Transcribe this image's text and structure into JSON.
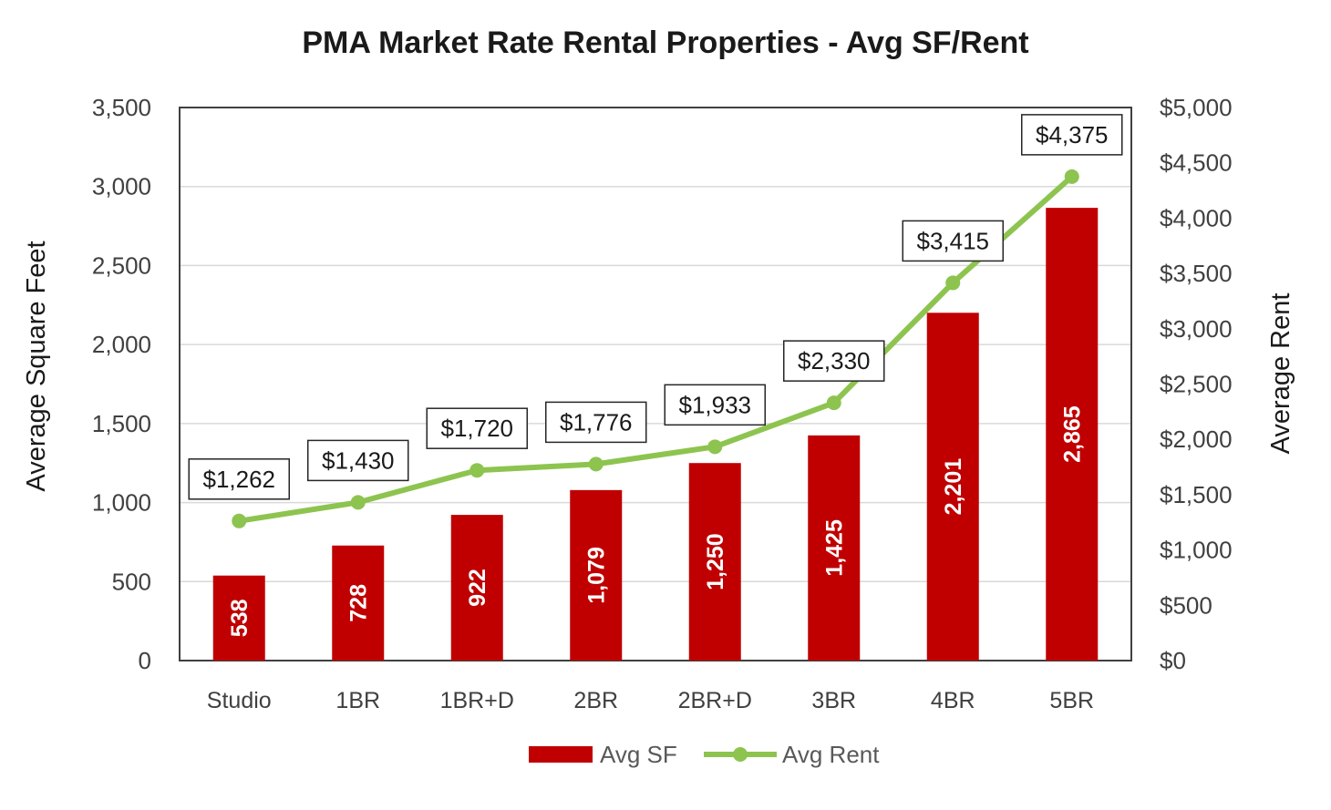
{
  "chart_data": {
    "type": "bar",
    "title": "PMA Market Rate Rental Properties - Avg SF/Rent",
    "categories": [
      "Studio",
      "1BR",
      "1BR+D",
      "2BR",
      "2BR+D",
      "3BR",
      "4BR",
      "5BR"
    ],
    "series": [
      {
        "name": "Avg SF",
        "type": "bar",
        "axis": "left",
        "color": "#c00000",
        "values": [
          538,
          728,
          922,
          1079,
          1250,
          1425,
          2201,
          2865
        ],
        "labels": [
          "538",
          "728",
          "922",
          "1,079",
          "1,250",
          "1,425",
          "2,201",
          "2,865"
        ]
      },
      {
        "name": "Avg Rent",
        "type": "line",
        "axis": "right",
        "color": "#8dc44f",
        "marker": "circle",
        "values": [
          1262,
          1430,
          1720,
          1776,
          1933,
          2330,
          3415,
          4375
        ],
        "labels": [
          "$1,262",
          "$1,430",
          "$1,720",
          "$1,776",
          "$1,933",
          "$2,330",
          "$3,415",
          "$4,375"
        ]
      }
    ],
    "ylabel": "Average Square Feet",
    "ylim": [
      0,
      3500
    ],
    "yticks": [
      "0",
      "500",
      "1,000",
      "1,500",
      "2,000",
      "2,500",
      "3,000",
      "3,500"
    ],
    "y2label": "Average Rent",
    "y2lim": [
      0,
      5000
    ],
    "y2ticks": [
      "$0",
      "$500",
      "$1,000",
      "$1,500",
      "$2,000",
      "$2,500",
      "$3,000",
      "$3,500",
      "$4,000",
      "$4,500",
      "$5,000"
    ],
    "grid": true,
    "legend": "bottom"
  }
}
